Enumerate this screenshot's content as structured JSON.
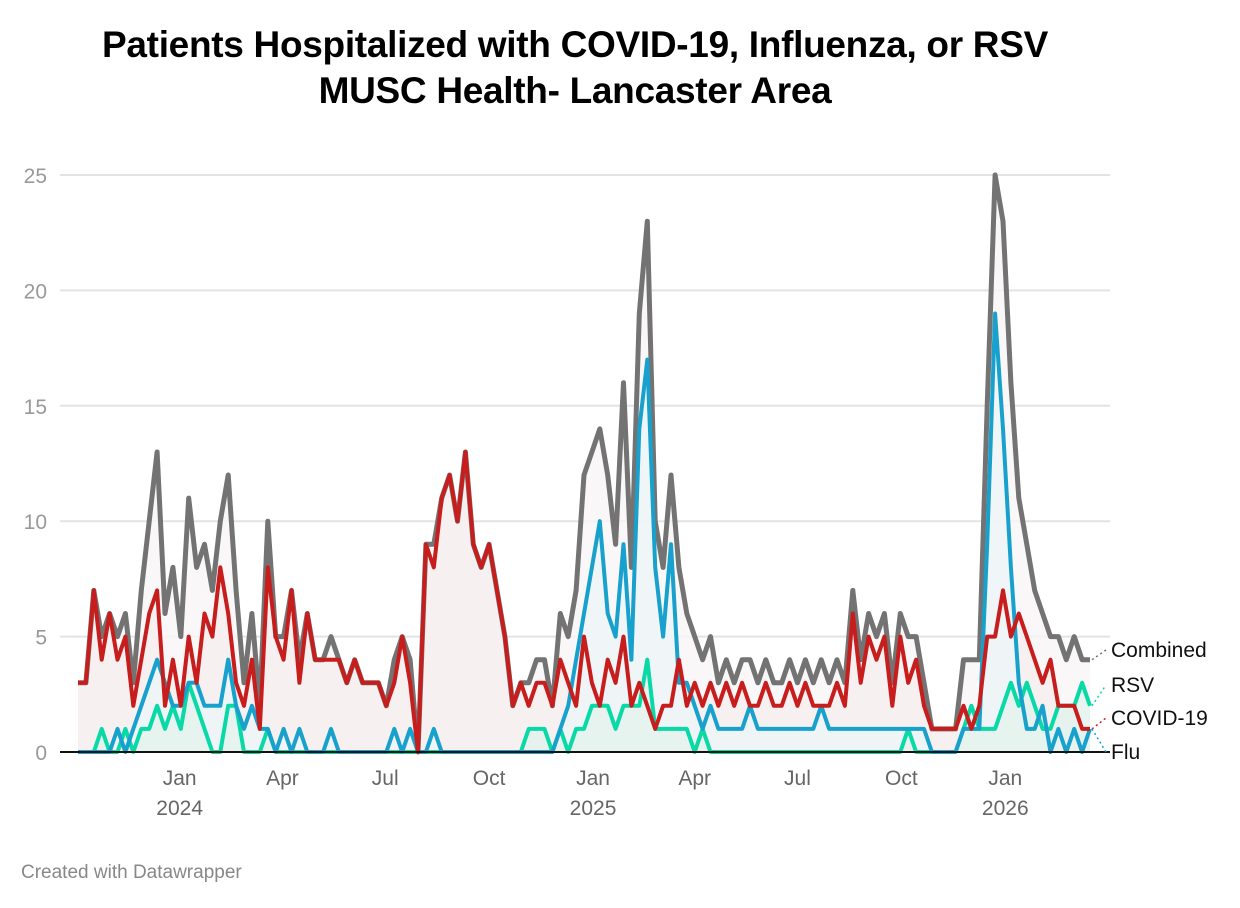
{
  "chart_data": {
    "type": "line",
    "title": "Patients Hospitalized with COVID-19, Influenza, or RSV",
    "subtitle": "MUSC Health- Lancaster Area",
    "xlabel": "",
    "ylabel": "",
    "ylim": [
      0,
      25
    ],
    "yticks": [
      0,
      5,
      10,
      15,
      20,
      25
    ],
    "xticks": [
      {
        "date": "2024-01-01",
        "label": "Jan",
        "year": "2024"
      },
      {
        "date": "2024-04-01",
        "label": "Apr",
        "year": ""
      },
      {
        "date": "2024-07-01",
        "label": "Jul",
        "year": ""
      },
      {
        "date": "2024-10-01",
        "label": "Oct",
        "year": ""
      },
      {
        "date": "2025-01-01",
        "label": "Jan",
        "year": "2025"
      },
      {
        "date": "2025-04-01",
        "label": "Apr",
        "year": ""
      },
      {
        "date": "2025-07-01",
        "label": "Jul",
        "year": ""
      },
      {
        "date": "2025-10-01",
        "label": "Oct",
        "year": ""
      },
      {
        "date": "2026-01-01",
        "label": "Jan",
        "year": "2026"
      }
    ],
    "grid": true,
    "legend": "direct labels at right",
    "x": [
      "2023-10-03",
      "2023-10-10",
      "2023-10-17",
      "2023-10-24",
      "2023-10-31",
      "2023-11-07",
      "2023-11-14",
      "2023-11-21",
      "2023-11-28",
      "2023-12-05",
      "2023-12-12",
      "2023-12-19",
      "2023-12-26",
      "2024-01-02",
      "2024-01-09",
      "2024-01-16",
      "2024-01-23",
      "2024-01-30",
      "2024-02-06",
      "2024-02-13",
      "2024-02-20",
      "2024-02-27",
      "2024-03-05",
      "2024-03-12",
      "2024-03-19",
      "2024-03-26",
      "2024-04-02",
      "2024-04-09",
      "2024-04-16",
      "2024-04-23",
      "2024-04-30",
      "2024-05-07",
      "2024-05-14",
      "2024-05-21",
      "2024-05-28",
      "2024-06-04",
      "2024-06-11",
      "2024-06-18",
      "2024-06-25",
      "2024-07-02",
      "2024-07-09",
      "2024-07-16",
      "2024-07-23",
      "2024-07-30",
      "2024-08-06",
      "2024-08-13",
      "2024-08-20",
      "2024-08-27",
      "2024-09-03",
      "2024-09-10",
      "2024-09-17",
      "2024-09-24",
      "2024-10-01",
      "2024-10-08",
      "2024-10-15",
      "2024-10-22",
      "2024-10-29",
      "2024-11-05",
      "2024-11-12",
      "2024-11-19",
      "2024-11-26",
      "2024-12-03",
      "2024-12-10",
      "2024-12-17",
      "2024-12-24",
      "2024-12-31",
      "2025-01-07",
      "2025-01-14",
      "2025-01-21",
      "2025-01-28",
      "2025-02-04",
      "2025-02-11",
      "2025-02-18",
      "2025-02-25",
      "2025-03-04",
      "2025-03-11",
      "2025-03-18",
      "2025-03-25",
      "2025-04-01",
      "2025-04-08",
      "2025-04-15",
      "2025-04-22",
      "2025-04-29",
      "2025-05-06",
      "2025-05-13",
      "2025-05-20",
      "2025-05-27",
      "2025-06-03",
      "2025-06-10",
      "2025-06-17",
      "2025-06-24",
      "2025-07-01",
      "2025-07-08",
      "2025-07-15",
      "2025-07-22",
      "2025-07-29",
      "2025-08-05",
      "2025-08-12",
      "2025-08-19",
      "2025-08-26",
      "2025-09-02",
      "2025-09-09",
      "2025-09-16",
      "2025-09-23",
      "2025-09-30",
      "2025-10-07",
      "2025-10-14",
      "2025-10-21",
      "2025-10-28",
      "2025-11-04",
      "2025-11-11",
      "2025-11-18",
      "2025-11-25",
      "2025-12-02",
      "2025-12-09",
      "2025-12-16",
      "2025-12-23",
      "2025-12-30",
      "2026-01-06",
      "2026-01-13",
      "2026-01-20",
      "2026-01-27",
      "2026-02-03",
      "2026-02-10",
      "2026-02-17",
      "2026-02-24",
      "2026-03-03",
      "2026-03-10",
      "2026-03-17"
    ],
    "series": [
      {
        "name": "Combined",
        "color": "#737373",
        "values": [
          3,
          3,
          7,
          5,
          6,
          5,
          6,
          3,
          7,
          10,
          13,
          6,
          8,
          5,
          11,
          8,
          9,
          7,
          10,
          12,
          7,
          3,
          6,
          2,
          10,
          5,
          5,
          7,
          4,
          6,
          4,
          4,
          5,
          4,
          3,
          4,
          3,
          3,
          3,
          2,
          4,
          5,
          4,
          0,
          9,
          9,
          11,
          12,
          10,
          13,
          9,
          8,
          9,
          7,
          5,
          2,
          3,
          3,
          4,
          4,
          2,
          6,
          5,
          7,
          12,
          13,
          14,
          12,
          9,
          16,
          8,
          19,
          23,
          10,
          8,
          12,
          8,
          6,
          5,
          4,
          5,
          3,
          4,
          3,
          4,
          4,
          3,
          4,
          3,
          3,
          4,
          3,
          4,
          3,
          4,
          3,
          4,
          3,
          7,
          4,
          6,
          5,
          6,
          3,
          6,
          5,
          5,
          3,
          1,
          1,
          1,
          1,
          4,
          4,
          4,
          15,
          25,
          23,
          16,
          11,
          9,
          7,
          6,
          5,
          5,
          4,
          5,
          4,
          4
        ]
      },
      {
        "name": "RSV",
        "color": "#09d9a6",
        "values": [
          0,
          0,
          0,
          1,
          0,
          0,
          1,
          0,
          1,
          1,
          2,
          1,
          2,
          1,
          3,
          2,
          1,
          0,
          0,
          2,
          2,
          0,
          0,
          0,
          1,
          0,
          0,
          0,
          0,
          0,
          0,
          0,
          0,
          0,
          0,
          0,
          0,
          0,
          0,
          0,
          0,
          0,
          0,
          0,
          0,
          0,
          0,
          0,
          0,
          0,
          0,
          0,
          0,
          0,
          0,
          0,
          0,
          1,
          1,
          1,
          0,
          1,
          0,
          1,
          1,
          2,
          2,
          2,
          1,
          2,
          2,
          2,
          4,
          1,
          1,
          1,
          1,
          1,
          0,
          1,
          0,
          0,
          0,
          0,
          0,
          0,
          0,
          0,
          0,
          0,
          0,
          0,
          0,
          0,
          0,
          0,
          0,
          0,
          0,
          0,
          0,
          0,
          0,
          0,
          0,
          1,
          0,
          0,
          0,
          0,
          0,
          0,
          1,
          2,
          1,
          1,
          1,
          2,
          3,
          2,
          3,
          2,
          1,
          1,
          2,
          2,
          2,
          3,
          2
        ]
      },
      {
        "name": "COVID-19",
        "color": "#c71e1d",
        "values": [
          3,
          3,
          7,
          4,
          6,
          4,
          5,
          2,
          4,
          6,
          7,
          2,
          4,
          2,
          5,
          3,
          6,
          5,
          8,
          6,
          3,
          2,
          4,
          1,
          8,
          5,
          4,
          7,
          3,
          6,
          4,
          4,
          4,
          4,
          3,
          4,
          3,
          3,
          3,
          2,
          3,
          5,
          3,
          0,
          9,
          8,
          11,
          12,
          10,
          13,
          9,
          8,
          9,
          7,
          5,
          2,
          3,
          2,
          3,
          3,
          2,
          4,
          3,
          2,
          5,
          3,
          2,
          4,
          3,
          5,
          2,
          3,
          2,
          1,
          2,
          2,
          4,
          2,
          3,
          2,
          3,
          2,
          3,
          2,
          3,
          2,
          2,
          3,
          2,
          2,
          3,
          2,
          3,
          2,
          2,
          2,
          3,
          2,
          6,
          3,
          5,
          4,
          5,
          2,
          5,
          3,
          4,
          2,
          1,
          1,
          1,
          1,
          2,
          1,
          2,
          5,
          5,
          7,
          5,
          6,
          5,
          4,
          3,
          4,
          2,
          2,
          2,
          1,
          1
        ]
      },
      {
        "name": "Flu",
        "color": "#18a1cd",
        "values": [
          0,
          0,
          0,
          0,
          0,
          1,
          0,
          1,
          2,
          3,
          4,
          3,
          2,
          2,
          3,
          3,
          2,
          2,
          2,
          4,
          2,
          1,
          2,
          1,
          1,
          0,
          1,
          0,
          1,
          0,
          0,
          0,
          1,
          0,
          0,
          0,
          0,
          0,
          0,
          0,
          1,
          0,
          1,
          0,
          0,
          1,
          0,
          0,
          0,
          0,
          0,
          0,
          0,
          0,
          0,
          0,
          0,
          0,
          0,
          0,
          0,
          1,
          2,
          4,
          6,
          8,
          10,
          6,
          5,
          9,
          4,
          14,
          17,
          8,
          5,
          9,
          3,
          3,
          2,
          1,
          2,
          1,
          1,
          1,
          1,
          2,
          1,
          1,
          1,
          1,
          1,
          1,
          1,
          1,
          2,
          1,
          1,
          1,
          1,
          1,
          1,
          1,
          1,
          1,
          1,
          1,
          1,
          1,
          0,
          0,
          0,
          0,
          1,
          1,
          1,
          9,
          19,
          14,
          8,
          3,
          1,
          1,
          2,
          0,
          1,
          0,
          1,
          0,
          1
        ]
      }
    ]
  },
  "footer": "Created with Datawrapper"
}
